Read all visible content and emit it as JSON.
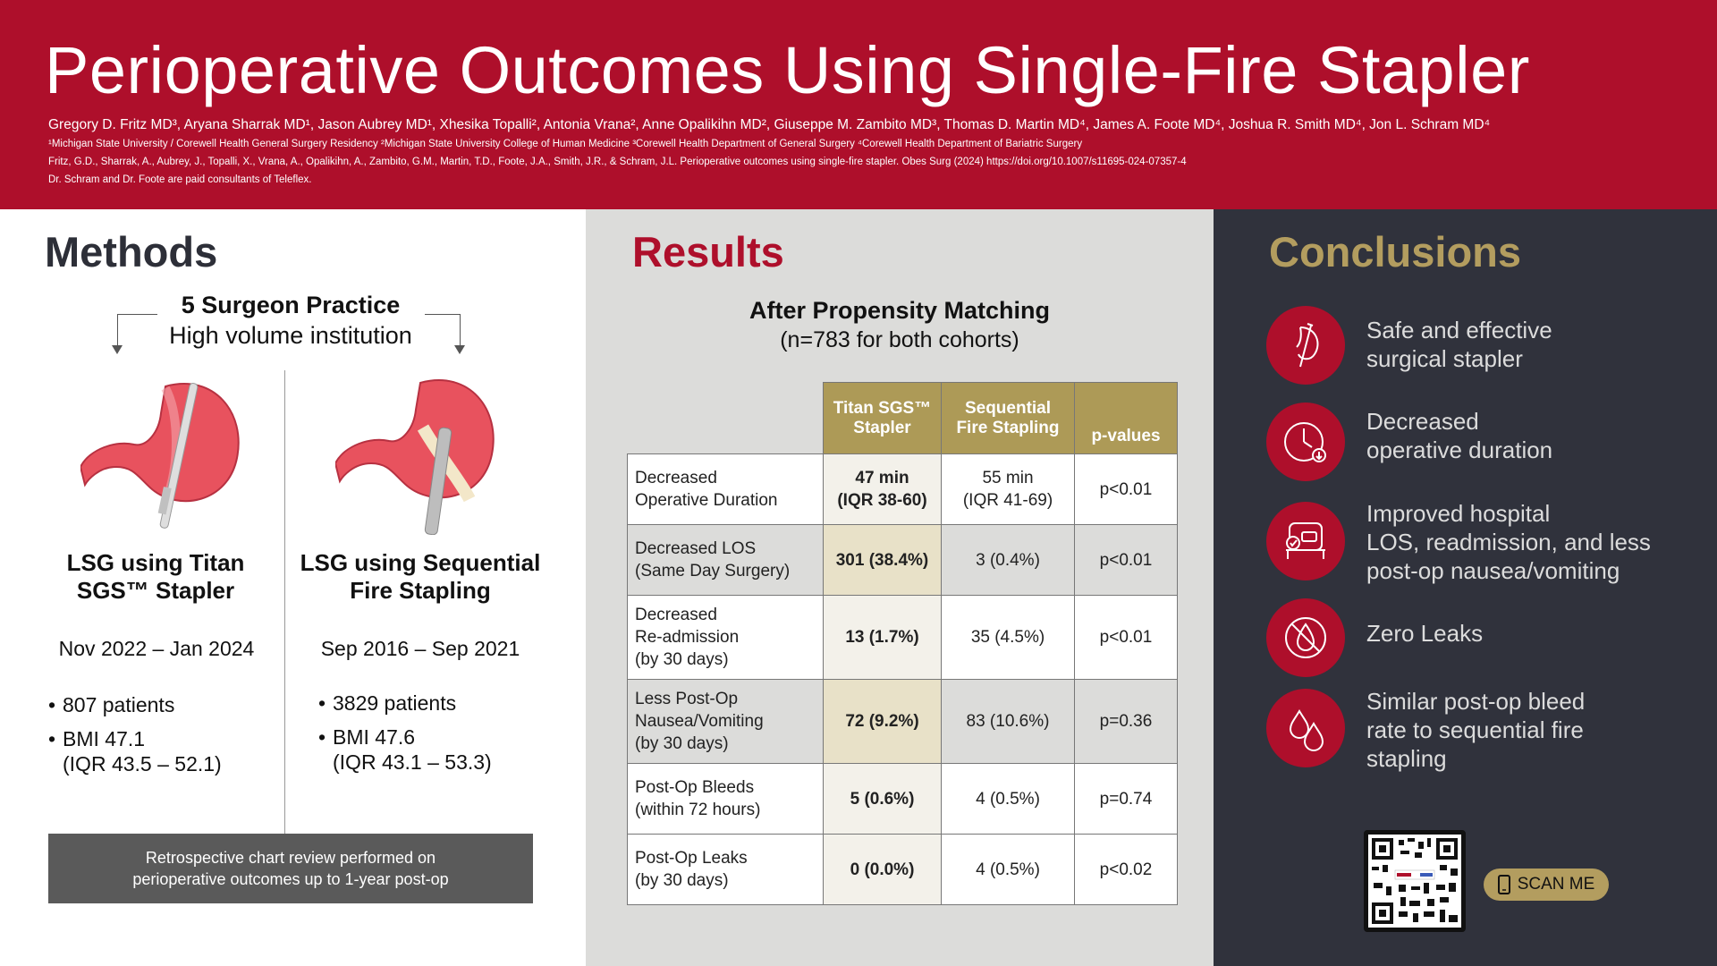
{
  "header": {
    "title": "Perioperative Outcomes Using Single-Fire Stapler",
    "authors": "Gregory D. Fritz MD³, Aryana Sharrak MD¹, Jason Aubrey MD¹, Xhesika Topalli², Antonia Vrana², Anne Opalikihn MD², Giuseppe M. Zambito MD³, Thomas D. Martin MD⁴, James A. Foote MD⁴, Joshua R. Smith MD⁴, Jon L. Schram MD⁴",
    "affiliations": "¹Michigan State University / Corewell Health General Surgery Residency  ²Michigan State University College of Human Medicine  ³Corewell Health Department of General Surgery  ⁴Corewell Health Department of Bariatric Surgery",
    "citation": "Fritz, G.D., Sharrak, A., Aubrey, J., Topalli, X., Vrana, A., Opalikihn, A., Zambito, G.M., Martin, T.D., Foote, J.A., Smith, J.R., & Schram, J.L. Perioperative outcomes using single-fire stapler. Obes Surg (2024) https://doi.org/10.1007/s11695-024-07357-4",
    "disclosure": "Dr. Schram and Dr. Foote are paid consultants of Teleflex."
  },
  "methods": {
    "title": "Methods",
    "practice_line1": "5 Surgeon Practice",
    "practice_line2": "High volume institution",
    "left_arm": {
      "title_line1": "LSG using Titan",
      "title_line2": "SGS™ Stapler",
      "dates": "Nov 2022 – Jan 2024",
      "patients": "807 patients",
      "bmi": "BMI 47.1",
      "bmi_iqr": "(IQR 43.5 – 52.1)"
    },
    "right_arm": {
      "title_line1": "LSG using Sequential",
      "title_line2": "Fire Stapling",
      "dates": "Sep 2016 – Sep 2021",
      "patients": "3829 patients",
      "bmi": "BMI 47.6",
      "bmi_iqr": "(IQR 43.1 – 53.3)"
    },
    "retro_line1": "Retrospective chart review performed on",
    "retro_line2": "perioperative outcomes up to 1-year post-op"
  },
  "results": {
    "title": "Results",
    "subtitle1": "After Propensity Matching",
    "subtitle2": "(n=783 for both cohorts)",
    "headers": {
      "titan1": "Titan SGS™",
      "titan2": "Stapler",
      "seq1": "Sequential",
      "seq2": "Fire Stapling",
      "p": "p-values"
    },
    "rows": [
      {
        "l1": "Decreased",
        "l2": "Operative Duration",
        "l3": "",
        "t1": "47 min",
        "t2": "(IQR 38-60)",
        "s1": "55 min",
        "s2": "(IQR 41-69)",
        "p": "p<0.01"
      },
      {
        "l1": "Decreased LOS",
        "l2": "(Same Day Surgery)",
        "l3": "",
        "t1": "301 (38.4%)",
        "t2": "",
        "s1": "3 (0.4%)",
        "s2": "",
        "p": "p<0.01"
      },
      {
        "l1": "Decreased",
        "l2": "Re-admission",
        "l3": "(by 30 days)",
        "t1": "13 (1.7%)",
        "t2": "",
        "s1": "35 (4.5%)",
        "s2": "",
        "p": "p<0.01"
      },
      {
        "l1": "Less Post-Op",
        "l2": "Nausea/Vomiting",
        "l3": "(by 30 days)",
        "t1": "72 (9.2%)",
        "t2": "",
        "s1": "83 (10.6%)",
        "s2": "",
        "p": "p=0.36"
      },
      {
        "l1": "Post-Op Bleeds",
        "l2": "(within 72 hours)",
        "l3": "",
        "t1": "5 (0.6%)",
        "t2": "",
        "s1": "4 (0.5%)",
        "s2": "",
        "p": "p=0.74"
      },
      {
        "l1": "Post-Op Leaks",
        "l2": "(by 30 days)",
        "l3": "",
        "t1": "0 (0.0%)",
        "t2": "",
        "s1": "4 (0.5%)",
        "s2": "",
        "p": "p<0.02"
      }
    ]
  },
  "conclusions": {
    "title": "Conclusions",
    "items": [
      {
        "icon": "stapler-icon",
        "l1": "Safe and effective",
        "l2": "surgical stapler",
        "l3": ""
      },
      {
        "icon": "clock-icon",
        "l1": "Decreased",
        "l2": "operative duration",
        "l3": ""
      },
      {
        "icon": "hospital-bed-icon",
        "l1": "Improved hospital",
        "l2": "LOS, readmission, and less",
        "l3": "post-op nausea/vomiting"
      },
      {
        "icon": "no-leak-icon",
        "l1": "Zero Leaks",
        "l2": "",
        "l3": ""
      },
      {
        "icon": "blood-drops-icon",
        "l1": "Similar post-op bleed",
        "l2": "rate to sequential fire",
        "l3": "stapling"
      }
    ],
    "scan_label": "SCAN ME",
    "qr_icon": "qr-code-icon",
    "phone_icon": "phone-icon"
  },
  "colors": {
    "brand_red": "#ae0f2b",
    "gold": "#ad9a57",
    "dark": "#30323c",
    "grey": "#dcdcda"
  }
}
